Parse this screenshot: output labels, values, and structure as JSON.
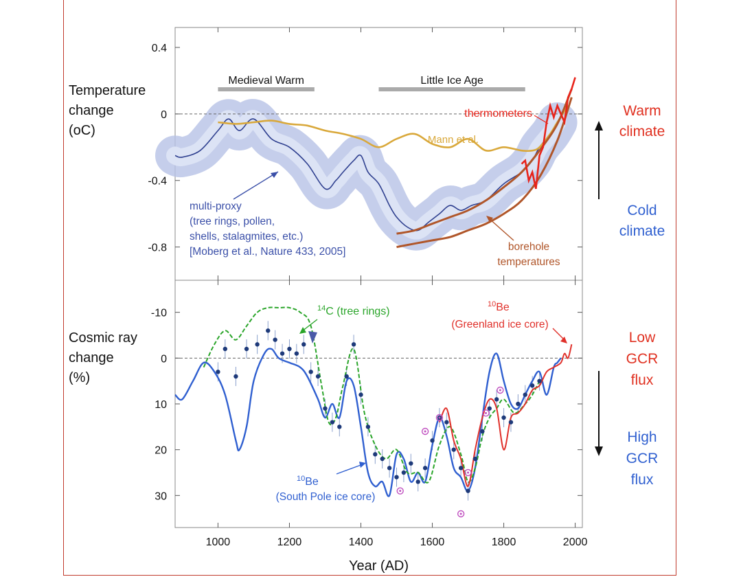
{
  "chart_data": [
    {
      "type": "line",
      "panel": "top",
      "ylabel_lines": [
        "Temperature",
        "change",
        "(oC)"
      ],
      "ylim": [
        -1.0,
        0.52
      ],
      "xlim": [
        880,
        2020
      ],
      "y_ticks": [
        {
          "value": 0.4,
          "label": "0.4"
        },
        {
          "value": 0,
          "label": "0"
        },
        {
          "value": -0.4,
          "label": "-0.4"
        },
        {
          "value": -0.8,
          "label": "-0.8"
        }
      ],
      "periods": [
        {
          "label": "Medieval Warm",
          "start": 1000,
          "end": 1270,
          "level": 0.2
        },
        {
          "label": "Little Ice Age",
          "start": 1450,
          "end": 1860,
          "level": 0.2
        }
      ],
      "annotations": {
        "thermometers": "thermometers",
        "mann": "Mann et al.",
        "multiproxy_lines": [
          "multi-proxy",
          "(tree rings, pollen,",
          "shells, stalagmites, etc.)",
          "[Moberg et al., Nature 433, 2005]"
        ],
        "borehole_lines": [
          "borehole",
          "temperatures"
        ]
      },
      "side_labels": {
        "warm_lines": [
          "Warm",
          "climate"
        ],
        "cold_lines": [
          "Cold",
          "climate"
        ]
      },
      "colors": {
        "multiproxy": "#2e3f8f",
        "band": "#b7c2e6",
        "mann": "#d9a83a",
        "borehole": "#b0562a",
        "thermometers": "#e8231a",
        "warm": "#e03020",
        "cold": "#3060d0"
      },
      "series": [
        {
          "name": "multi-proxy",
          "x": [
            880,
            900,
            950,
            1000,
            1030,
            1060,
            1100,
            1150,
            1200,
            1250,
            1300,
            1330,
            1350,
            1380,
            1400,
            1420,
            1450,
            1480,
            1500,
            1530,
            1560,
            1590,
            1620,
            1650,
            1680,
            1710,
            1750,
            1800,
            1850,
            1880,
            1900,
            1930,
            1950
          ],
          "y": [
            -0.25,
            -0.26,
            -0.22,
            -0.1,
            -0.03,
            -0.1,
            -0.03,
            -0.15,
            -0.2,
            -0.3,
            -0.45,
            -0.4,
            -0.35,
            -0.28,
            -0.25,
            -0.35,
            -0.42,
            -0.55,
            -0.62,
            -0.68,
            -0.7,
            -0.65,
            -0.6,
            -0.55,
            -0.58,
            -0.55,
            -0.52,
            -0.42,
            -0.35,
            -0.28,
            -0.2,
            -0.12,
            -0.05
          ]
        },
        {
          "name": "Mann et al.",
          "x": [
            1000,
            1050,
            1100,
            1150,
            1200,
            1250,
            1300,
            1350,
            1400,
            1450,
            1500,
            1550,
            1600,
            1650,
            1700,
            1750,
            1800,
            1850,
            1880,
            1900,
            1930,
            1950,
            1980
          ],
          "y": [
            -0.05,
            -0.06,
            -0.05,
            -0.04,
            -0.06,
            -0.07,
            -0.1,
            -0.12,
            -0.15,
            -0.2,
            -0.15,
            -0.12,
            -0.18,
            -0.2,
            -0.15,
            -0.22,
            -0.2,
            -0.22,
            -0.22,
            -0.2,
            -0.12,
            -0.05,
            0.05
          ]
        },
        {
          "name": "borehole",
          "x": [
            1500,
            1550,
            1600,
            1650,
            1700,
            1750,
            1800,
            1850,
            1900,
            1950,
            1990
          ],
          "y": [
            -0.72,
            -0.7,
            -0.66,
            -0.62,
            -0.58,
            -0.52,
            -0.44,
            -0.35,
            -0.22,
            -0.06,
            0.15
          ]
        },
        {
          "name": "borehole-lower",
          "x": [
            1500,
            1550,
            1600,
            1650,
            1700,
            1750,
            1800,
            1850,
            1900,
            1950,
            1990
          ],
          "y": [
            -0.8,
            -0.78,
            -0.76,
            -0.74,
            -0.7,
            -0.66,
            -0.6,
            -0.52,
            -0.38,
            -0.16,
            0.1
          ]
        },
        {
          "name": "thermometers",
          "x": [
            1850,
            1860,
            1870,
            1880,
            1890,
            1900,
            1910,
            1920,
            1930,
            1940,
            1950,
            1960,
            1970,
            1980,
            1990,
            2000
          ],
          "y": [
            -0.3,
            -0.28,
            -0.4,
            -0.35,
            -0.45,
            -0.25,
            -0.2,
            -0.05,
            0.05,
            -0.02,
            0.05,
            0.0,
            -0.05,
            0.1,
            0.15,
            0.22
          ]
        }
      ]
    },
    {
      "type": "line",
      "panel": "bottom",
      "ylabel_lines": [
        "Cosmic ray",
        "change",
        "(%)"
      ],
      "ylim": [
        -17,
        37
      ],
      "inverted": true,
      "xlim": [
        880,
        2020
      ],
      "xlabel": "Year (AD)",
      "x_ticks": [
        {
          "value": 1000,
          "label": "1000"
        },
        {
          "value": 1200,
          "label": "1200"
        },
        {
          "value": 1400,
          "label": "1400"
        },
        {
          "value": 1600,
          "label": "1600"
        },
        {
          "value": 1800,
          "label": "1800"
        },
        {
          "value": 2000,
          "label": "2000"
        }
      ],
      "y_ticks": [
        {
          "value": -10,
          "label": "-10"
        },
        {
          "value": 0,
          "label": "0"
        },
        {
          "value": 10,
          "label": "10"
        },
        {
          "value": 20,
          "label": "20"
        },
        {
          "value": 30,
          "label": "30"
        }
      ],
      "annotations": {
        "c14_sup": "14",
        "c14_text": "C (tree rings)",
        "be_greenland_sup": "10",
        "be_greenland_text": "Be",
        "be_greenland_source": "(Greenland ice core)",
        "be_south_sup": "10",
        "be_south_text": "Be",
        "be_south_source": "(South Pole ice core)"
      },
      "side_labels": {
        "low_lines": [
          "Low",
          "GCR",
          "flux"
        ],
        "high_lines": [
          "High",
          "GCR",
          "flux"
        ]
      },
      "colors": {
        "south_pole": "#2f5fd0",
        "c14": "#2aa52a",
        "greenland": "#e0302a",
        "points": "#1e3a7a",
        "magenta": "#c050c0",
        "low": "#e03020",
        "high": "#3060d0"
      },
      "series": [
        {
          "name": "10Be (South Pole ice core)",
          "x": [
            880,
            900,
            930,
            960,
            990,
            1020,
            1050,
            1060,
            1080,
            1100,
            1130,
            1150,
            1170,
            1200,
            1230,
            1250,
            1280,
            1300,
            1320,
            1340,
            1360,
            1380,
            1400,
            1420,
            1440,
            1460,
            1480,
            1500,
            1520,
            1540,
            1560,
            1580,
            1600,
            1620,
            1640,
            1660,
            1680,
            1700,
            1720,
            1740,
            1760,
            1780,
            1800,
            1820,
            1840,
            1860,
            1880,
            1900,
            1920,
            1940,
            1950,
            1960
          ],
          "y": [
            8,
            9,
            5,
            1,
            3,
            8,
            18,
            20,
            15,
            5,
            -1,
            -2,
            0,
            1,
            2,
            4,
            9,
            13,
            10,
            13,
            5,
            6,
            15,
            25,
            28,
            27,
            30,
            21,
            22,
            27,
            25,
            27,
            19,
            13,
            17,
            24,
            26,
            29,
            24,
            13,
            3,
            -1,
            5,
            10,
            11,
            8,
            5,
            3,
            8,
            2,
            1,
            0
          ]
        },
        {
          "name": "14C (tree rings)",
          "x": [
            960,
            990,
            1020,
            1050,
            1080,
            1110,
            1140,
            1170,
            1200,
            1230,
            1260,
            1290,
            1310,
            1330,
            1350,
            1380,
            1410,
            1440,
            1470,
            1500,
            1530,
            1560,
            1590,
            1620,
            1650,
            1680,
            1700,
            1720,
            1740,
            1760,
            1780,
            1800,
            1830,
            1860,
            1880,
            1900
          ],
          "y": [
            2,
            -3,
            -6,
            -4,
            -7,
            -10,
            -11,
            -11,
            -11,
            -10,
            -7,
            6,
            14,
            13,
            6,
            -2,
            12,
            19,
            22,
            20,
            25,
            25,
            27,
            19,
            15,
            21,
            27,
            24,
            17,
            13,
            11,
            9,
            12,
            10,
            8,
            5
          ]
        },
        {
          "name": "10Be (Greenland ice core)",
          "x": [
            1620,
            1640,
            1660,
            1680,
            1700,
            1720,
            1740,
            1760,
            1780,
            1800,
            1820,
            1840,
            1860,
            1880,
            1900,
            1920,
            1940,
            1960,
            1970,
            1980,
            1990
          ],
          "y": [
            14,
            11,
            18,
            22,
            28,
            20,
            13,
            9,
            11,
            20,
            13,
            12,
            10,
            7,
            6,
            3,
            2,
            1,
            -1,
            0,
            -3
          ]
        },
        {
          "name": "data points",
          "x": [
            1000,
            1020,
            1050,
            1080,
            1110,
            1140,
            1160,
            1180,
            1200,
            1220,
            1240,
            1260,
            1280,
            1300,
            1320,
            1340,
            1360,
            1380,
            1400,
            1420,
            1440,
            1460,
            1480,
            1500,
            1520,
            1540,
            1560,
            1580,
            1600,
            1620,
            1640,
            1660,
            1680,
            1700,
            1720,
            1740,
            1760,
            1780,
            1800,
            1820,
            1840,
            1860,
            1880,
            1900
          ],
          "y": [
            3,
            -2,
            4,
            -2,
            -3,
            -6,
            -4,
            -1,
            -2,
            -1,
            -3,
            3,
            4,
            11,
            14,
            15,
            4,
            -3,
            8,
            15,
            21,
            22,
            24,
            26,
            25,
            23,
            27,
            24,
            18,
            13,
            14,
            20,
            24,
            29,
            22,
            16,
            11,
            9,
            13,
            14,
            10,
            8,
            6,
            5
          ]
        },
        {
          "name": "magenta points",
          "x": [
            1510,
            1580,
            1620,
            1680,
            1700,
            1750,
            1790
          ],
          "y": [
            29,
            16,
            13,
            34,
            25,
            12,
            7
          ]
        }
      ]
    }
  ]
}
